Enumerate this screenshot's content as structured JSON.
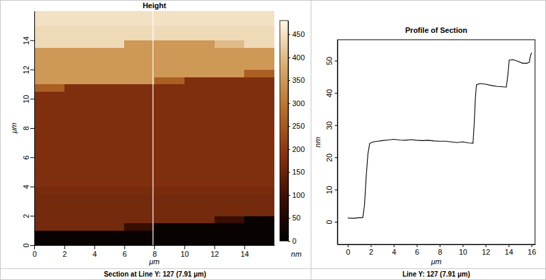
{
  "chart_data": [
    {
      "type": "heatmap",
      "title": "Height",
      "x_label": "μm",
      "y_label": "μm",
      "caption": "Section at Line Y: 127 (7.91 μm)",
      "x": [
        1,
        3,
        5,
        7,
        9,
        11,
        13,
        15
      ],
      "y": [
        0.25,
        0.75,
        1.25,
        1.75,
        2.25,
        2.75,
        3.25,
        3.75,
        4.25,
        4.75,
        5.25,
        5.75,
        6.25,
        6.75,
        7.25,
        7.75,
        8.25,
        8.75,
        9.25,
        9.75,
        10.25,
        10.75,
        11.25,
        11.75,
        12.25,
        12.75,
        13.25,
        13.75,
        14.25,
        14.75,
        15.25,
        15.75
      ],
      "cells": [
        [
          12,
          12,
          12,
          12,
          12,
          12,
          12,
          12
        ],
        [
          12,
          12,
          12,
          12,
          12,
          12,
          12,
          12
        ],
        [
          165,
          165,
          165,
          90,
          12,
          12,
          12,
          12
        ],
        [
          165,
          165,
          165,
          165,
          165,
          165,
          90,
          12
        ],
        [
          165,
          165,
          165,
          165,
          165,
          165,
          165,
          165
        ],
        [
          165,
          165,
          165,
          165,
          165,
          165,
          165,
          165
        ],
        [
          165,
          165,
          165,
          165,
          165,
          165,
          165,
          165
        ],
        [
          170,
          170,
          170,
          170,
          170,
          170,
          170,
          170
        ],
        [
          180,
          180,
          180,
          180,
          180,
          180,
          180,
          180
        ],
        [
          180,
          180,
          180,
          180,
          180,
          180,
          180,
          180
        ],
        [
          180,
          180,
          180,
          180,
          180,
          180,
          180,
          180
        ],
        [
          180,
          180,
          180,
          180,
          180,
          180,
          180,
          180
        ],
        [
          180,
          180,
          180,
          180,
          180,
          180,
          180,
          180
        ],
        [
          180,
          180,
          180,
          180,
          180,
          180,
          180,
          180
        ],
        [
          180,
          180,
          180,
          180,
          180,
          180,
          180,
          180
        ],
        [
          180,
          180,
          180,
          180,
          180,
          180,
          180,
          180
        ],
        [
          180,
          180,
          180,
          180,
          180,
          180,
          180,
          180
        ],
        [
          180,
          180,
          180,
          180,
          180,
          180,
          180,
          180
        ],
        [
          180,
          180,
          180,
          180,
          180,
          180,
          180,
          180
        ],
        [
          180,
          180,
          180,
          180,
          180,
          180,
          180,
          180
        ],
        [
          180,
          180,
          180,
          180,
          180,
          180,
          180,
          180
        ],
        [
          260,
          180,
          180,
          180,
          180,
          180,
          180,
          180
        ],
        [
          350,
          350,
          350,
          350,
          260,
          180,
          180,
          180
        ],
        [
          350,
          350,
          350,
          350,
          350,
          350,
          350,
          260
        ],
        [
          350,
          350,
          350,
          350,
          350,
          350,
          350,
          350
        ],
        [
          350,
          350,
          350,
          350,
          350,
          350,
          350,
          350
        ],
        [
          350,
          350,
          350,
          350,
          350,
          350,
          350,
          350
        ],
        [
          440,
          440,
          440,
          350,
          350,
          350,
          400,
          440
        ],
        [
          440,
          440,
          440,
          440,
          440,
          440,
          440,
          440
        ],
        [
          440,
          440,
          440,
          440,
          440,
          440,
          440,
          440
        ],
        [
          450,
          450,
          450,
          450,
          450,
          450,
          450,
          450
        ],
        [
          450,
          450,
          450,
          450,
          450,
          450,
          450,
          450
        ]
      ],
      "section_x": 7.91,
      "xlim": [
        0,
        16
      ],
      "ylim": [
        0,
        16
      ],
      "xticks": [
        0,
        2,
        4,
        6,
        8,
        10,
        12,
        14
      ],
      "yticks": [
        0,
        2,
        4,
        6,
        8,
        10,
        12,
        14
      ],
      "colorbar_range": [
        0,
        480
      ],
      "colorbar_ticks": [
        0,
        50,
        100,
        150,
        200,
        250,
        300,
        350,
        400,
        450
      ],
      "colorbar_label": "nm"
    },
    {
      "type": "line",
      "title": "Profile of Section",
      "x_label": "μm",
      "y_label": "nm",
      "caption": "Line Y: 127 (7.91 μm)",
      "x": [
        0.0,
        0.5,
        1.0,
        1.3,
        1.45,
        1.6,
        1.75,
        1.9,
        2.2,
        2.6,
        3.0,
        3.5,
        4.0,
        4.5,
        5.0,
        5.5,
        6.0,
        6.5,
        7.0,
        7.5,
        8.0,
        8.5,
        9.0,
        9.5,
        10.0,
        10.5,
        10.9,
        11.0,
        11.1,
        11.2,
        11.5,
        12.0,
        12.5,
        13.0,
        13.5,
        13.8,
        13.95,
        14.05,
        14.4,
        14.8,
        15.2,
        15.6,
        15.8,
        15.9,
        16.0
      ],
      "values": [
        1.2,
        1.1,
        1.3,
        1.3,
        5,
        14,
        21,
        24.3,
        24.8,
        25.0,
        25.2,
        25.4,
        25.6,
        25.4,
        25.3,
        25.5,
        25.3,
        25.2,
        25.3,
        25.1,
        25.0,
        25.0,
        24.8,
        24.6,
        24.8,
        24.5,
        24.4,
        30,
        38,
        42.5,
        42.9,
        42.7,
        42.3,
        42.0,
        41.9,
        41.8,
        46,
        50.2,
        50.3,
        49.8,
        49.2,
        49.2,
        49.5,
        51.5,
        52.5
      ],
      "color": "#000000",
      "xlim": [
        -0.9,
        16.3
      ],
      "ylim": [
        -7,
        56.5
      ],
      "xticks": [
        0,
        2,
        4,
        6,
        8,
        10,
        12,
        14,
        16
      ],
      "yticks": [
        0,
        10,
        20,
        30,
        40,
        50
      ]
    }
  ]
}
